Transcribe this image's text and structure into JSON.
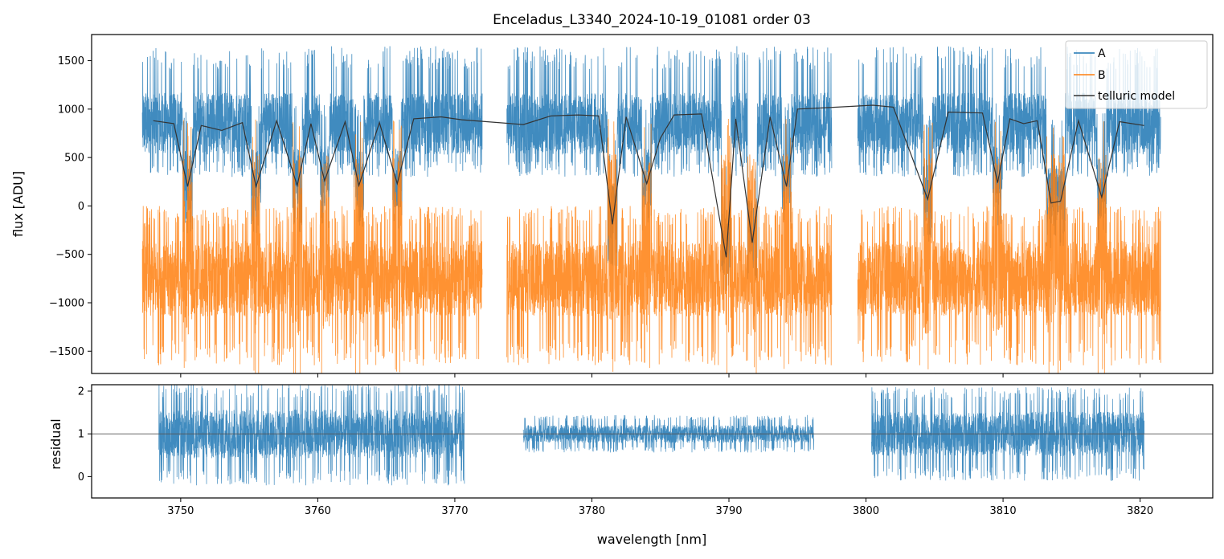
{
  "chart_data": [
    {
      "type": "line",
      "title": "Enceladus_L3340_2024-10-19_01081  order 03",
      "xlabel": "",
      "ylabel": "flux [ADU]",
      "xlim": [
        3743.5,
        3825.3
      ],
      "ylim": [
        -1730,
        1770
      ],
      "yticks": [
        -1500,
        -1000,
        -500,
        0,
        500,
        1000,
        1500
      ],
      "ytick_labels": [
        "−1500",
        "−1000",
        "−500",
        "0",
        "500",
        "1000",
        "1500"
      ],
      "xticks": [
        3750,
        3760,
        3770,
        3780,
        3790,
        3800,
        3810,
        3820
      ],
      "legend": {
        "position": "upper-right",
        "entries": [
          "A",
          "B",
          "telluric model"
        ]
      },
      "segments": [
        [
          3747.2,
          3772.0
        ],
        [
          3773.8,
          3797.5
        ],
        [
          3799.4,
          3821.5
        ]
      ],
      "series": [
        {
          "name": "A",
          "color": "#1f77b4",
          "continuum": 850,
          "noise_low": 300,
          "noise_high": 1650
        },
        {
          "name": "B",
          "color": "#ff7f0e",
          "continuum": -750,
          "noise_low": -1650,
          "noise_high": 0
        },
        {
          "name": "telluric model",
          "color": "#333333",
          "x": [
            3748.0,
            3749.5,
            3750.5,
            3751.5,
            3753.0,
            3754.5,
            3755.5,
            3757.0,
            3758.5,
            3759.5,
            3760.5,
            3762.0,
            3763.0,
            3764.5,
            3765.8,
            3767.0,
            3769.0,
            3770.5,
            3775.0,
            3777.0,
            3779.0,
            3780.5,
            3781.5,
            3782.5,
            3784.0,
            3785.0,
            3786.0,
            3788.0,
            3789.8,
            3790.5,
            3791.7,
            3793.0,
            3794.2,
            3795.0,
            3796.5,
            3800.5,
            3802.0,
            3804.5,
            3806.0,
            3808.5,
            3809.6,
            3810.5,
            3811.5,
            3812.5,
            3813.5,
            3814.2,
            3815.5,
            3817.2,
            3818.5,
            3820.3
          ],
          "y": [
            880,
            850,
            200,
            830,
            780,
            860,
            200,
            880,
            210,
            850,
            260,
            870,
            210,
            860,
            230,
            900,
            920,
            890,
            840,
            930,
            940,
            930,
            -190,
            920,
            230,
            700,
            940,
            950,
            -530,
            900,
            -380,
            920,
            200,
            1000,
            1010,
            1040,
            1020,
            70,
            970,
            960,
            240,
            900,
            850,
            880,
            30,
            50,
            880,
            90,
            870,
            830
          ]
        }
      ]
    },
    {
      "type": "line",
      "xlabel": "wavelength [nm]",
      "ylabel": "residual",
      "xlim": [
        3743.5,
        3825.3
      ],
      "ylim": [
        -0.5,
        2.15
      ],
      "yticks": [
        0,
        1,
        2
      ],
      "ytick_labels": [
        "0",
        "1",
        "2"
      ],
      "xticks": [
        3750,
        3760,
        3770,
        3780,
        3790,
        3800,
        3810,
        3820
      ],
      "xtick_labels": [
        "3750",
        "3760",
        "3770",
        "3780",
        "3790",
        "3800",
        "3810",
        "3820"
      ],
      "reference_line": 1,
      "segments": [
        [
          3748.4,
          3770.7
        ],
        [
          3775.0,
          3796.2
        ],
        [
          3800.4,
          3820.3
        ]
      ],
      "series": [
        {
          "name": "",
          "color": "#1f77b4",
          "center": 1.0,
          "spread": [
            0.55,
            0.2,
            0.5
          ]
        }
      ]
    }
  ]
}
